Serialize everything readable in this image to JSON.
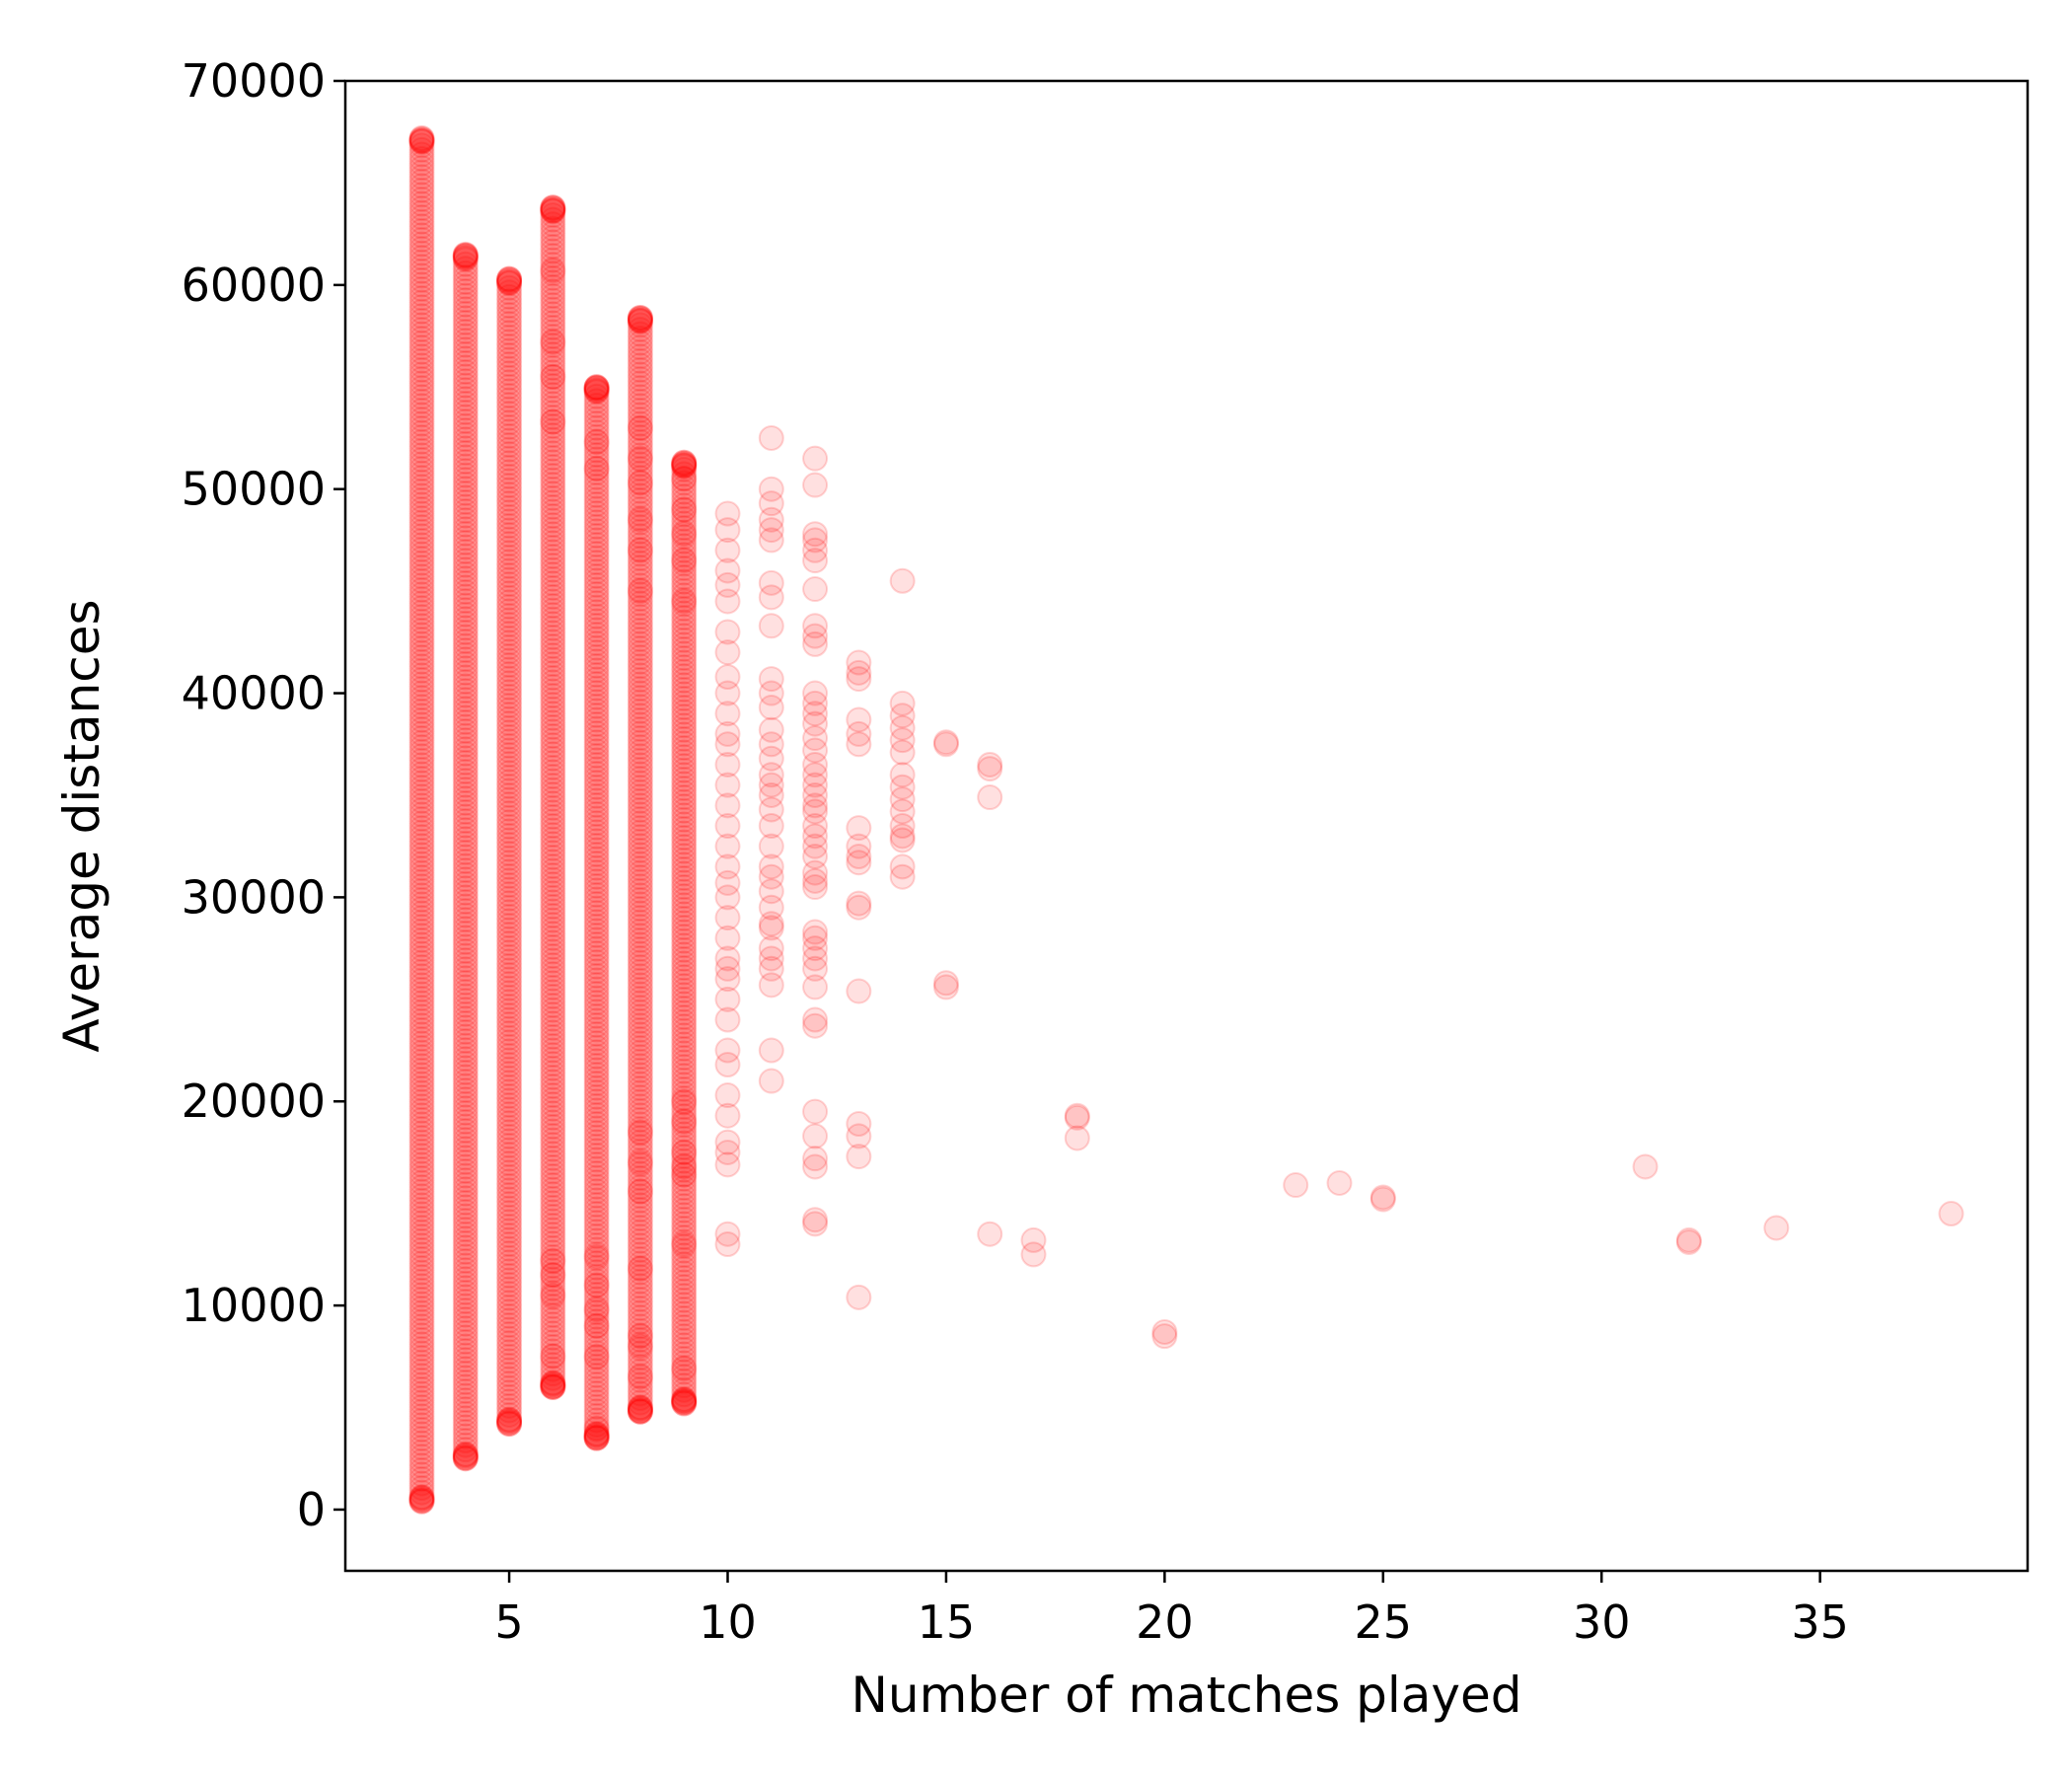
{
  "chart_data": {
    "type": "scatter",
    "title": "",
    "xlabel": "Number of matches played",
    "ylabel": "Average distances",
    "xlim": [
      1.25,
      39.75
    ],
    "ylim": [
      -3000,
      70000
    ],
    "xticks": [
      5,
      10,
      15,
      20,
      25,
      30,
      35
    ],
    "yticks": [
      0,
      10000,
      20000,
      30000,
      40000,
      50000,
      60000,
      70000
    ],
    "grid": false,
    "legend": "none",
    "marker": {
      "color": "#ff0000",
      "alpha": 0.12,
      "shape": "circle"
    },
    "series": [
      {
        "dense_bands": [
          {
            "x": 3,
            "y_range": [
              400,
              67200
            ]
          },
          {
            "x": 4,
            "y_range": [
              2500,
              61500
            ]
          },
          {
            "x": 5,
            "y_range": [
              4200,
              60300
            ]
          },
          {
            "x": 6,
            "y_range": [
              6000,
              63800
            ]
          },
          {
            "x": 7,
            "y_range": [
              3500,
              55000
            ]
          },
          {
            "x": 8,
            "y_range": [
              4800,
              58400
            ]
          },
          {
            "x": 9,
            "y_range": [
              5200,
              51300
            ]
          }
        ],
        "points": [
          [
            6,
            63800
          ],
          [
            6,
            60700
          ],
          [
            6,
            57200
          ],
          [
            6,
            55500
          ],
          [
            6,
            53300
          ],
          [
            6,
            12200
          ],
          [
            6,
            11500
          ],
          [
            6,
            10500
          ],
          [
            6,
            7500
          ],
          [
            6,
            6000
          ],
          [
            7,
            55000
          ],
          [
            7,
            52300
          ],
          [
            7,
            51000
          ],
          [
            7,
            12400
          ],
          [
            7,
            11000
          ],
          [
            7,
            9800
          ],
          [
            7,
            9000
          ],
          [
            7,
            7500
          ],
          [
            7,
            4000
          ],
          [
            7,
            3500
          ],
          [
            8,
            58400
          ],
          [
            8,
            53000
          ],
          [
            8,
            51500
          ],
          [
            8,
            50300
          ],
          [
            8,
            48500
          ],
          [
            8,
            47000
          ],
          [
            8,
            45000
          ],
          [
            8,
            18500
          ],
          [
            8,
            17000
          ],
          [
            8,
            15600
          ],
          [
            8,
            11800
          ],
          [
            8,
            8500
          ],
          [
            8,
            8000
          ],
          [
            8,
            6500
          ],
          [
            8,
            4800
          ],
          [
            9,
            51300
          ],
          [
            9,
            50500
          ],
          [
            9,
            49000
          ],
          [
            9,
            47800
          ],
          [
            9,
            46500
          ],
          [
            9,
            44500
          ],
          [
            9,
            20000
          ],
          [
            9,
            19000
          ],
          [
            9,
            17500
          ],
          [
            9,
            16800
          ],
          [
            9,
            16400
          ],
          [
            9,
            13000
          ],
          [
            9,
            6900
          ],
          [
            9,
            5300
          ],
          [
            10,
            48800
          ],
          [
            10,
            48000
          ],
          [
            10,
            47000
          ],
          [
            10,
            46000
          ],
          [
            10,
            45300
          ],
          [
            10,
            44500
          ],
          [
            10,
            43000
          ],
          [
            10,
            42000
          ],
          [
            10,
            40800
          ],
          [
            10,
            40000
          ],
          [
            10,
            39000
          ],
          [
            10,
            38000
          ],
          [
            10,
            37500
          ],
          [
            10,
            36500
          ],
          [
            10,
            35500
          ],
          [
            10,
            34500
          ],
          [
            10,
            33500
          ],
          [
            10,
            32500
          ],
          [
            10,
            31500
          ],
          [
            10,
            30700
          ],
          [
            10,
            30000
          ],
          [
            10,
            29000
          ],
          [
            10,
            28000
          ],
          [
            10,
            27000
          ],
          [
            10,
            26500
          ],
          [
            10,
            26000
          ],
          [
            10,
            25000
          ],
          [
            10,
            24000
          ],
          [
            10,
            22500
          ],
          [
            10,
            21800
          ],
          [
            10,
            20300
          ],
          [
            10,
            19300
          ],
          [
            10,
            18000
          ],
          [
            10,
            17500
          ],
          [
            10,
            16900
          ],
          [
            10,
            13500
          ],
          [
            10,
            13000
          ],
          [
            11,
            52500
          ],
          [
            11,
            50000
          ],
          [
            11,
            49300
          ],
          [
            11,
            48500
          ],
          [
            11,
            48000
          ],
          [
            11,
            47500
          ],
          [
            11,
            45400
          ],
          [
            11,
            44700
          ],
          [
            11,
            43300
          ],
          [
            11,
            40700
          ],
          [
            11,
            40000
          ],
          [
            11,
            39300
          ],
          [
            11,
            38200
          ],
          [
            11,
            37500
          ],
          [
            11,
            36800
          ],
          [
            11,
            36000
          ],
          [
            11,
            35500
          ],
          [
            11,
            35000
          ],
          [
            11,
            34300
          ],
          [
            11,
            33500
          ],
          [
            11,
            32500
          ],
          [
            11,
            31500
          ],
          [
            11,
            31000
          ],
          [
            11,
            30300
          ],
          [
            11,
            29500
          ],
          [
            11,
            28700
          ],
          [
            11,
            28500
          ],
          [
            11,
            27500
          ],
          [
            11,
            27000
          ],
          [
            11,
            26500
          ],
          [
            11,
            25700
          ],
          [
            11,
            22500
          ],
          [
            11,
            21000
          ],
          [
            12,
            51500
          ],
          [
            12,
            50200
          ],
          [
            12,
            47800
          ],
          [
            12,
            47500
          ],
          [
            12,
            47000
          ],
          [
            12,
            46500
          ],
          [
            12,
            45100
          ],
          [
            12,
            43300
          ],
          [
            12,
            42800
          ],
          [
            12,
            42400
          ],
          [
            12,
            40000
          ],
          [
            12,
            39500
          ],
          [
            12,
            39000
          ],
          [
            12,
            38500
          ],
          [
            12,
            37800
          ],
          [
            12,
            37200
          ],
          [
            12,
            36500
          ],
          [
            12,
            36000
          ],
          [
            12,
            35500
          ],
          [
            12,
            35000
          ],
          [
            12,
            34500
          ],
          [
            12,
            34200
          ],
          [
            12,
            33500
          ],
          [
            12,
            33000
          ],
          [
            12,
            32500
          ],
          [
            12,
            32000
          ],
          [
            12,
            31200
          ],
          [
            12,
            30800
          ],
          [
            12,
            30500
          ],
          [
            12,
            28300
          ],
          [
            12,
            28000
          ],
          [
            12,
            27500
          ],
          [
            12,
            27000
          ],
          [
            12,
            26500
          ],
          [
            12,
            25600
          ],
          [
            12,
            24000
          ],
          [
            12,
            23700
          ],
          [
            12,
            19500
          ],
          [
            12,
            18300
          ],
          [
            12,
            17200
          ],
          [
            12,
            16800
          ],
          [
            12,
            14200
          ],
          [
            12,
            14000
          ],
          [
            13,
            41500
          ],
          [
            13,
            41000
          ],
          [
            13,
            40700
          ],
          [
            13,
            38700
          ],
          [
            13,
            38000
          ],
          [
            13,
            37500
          ],
          [
            13,
            33400
          ],
          [
            13,
            32500
          ],
          [
            13,
            32000
          ],
          [
            13,
            31700
          ],
          [
            13,
            29700
          ],
          [
            13,
            29500
          ],
          [
            13,
            25400
          ],
          [
            13,
            18900
          ],
          [
            13,
            18300
          ],
          [
            13,
            17300
          ],
          [
            13,
            10400
          ],
          [
            14,
            45500
          ],
          [
            14,
            39500
          ],
          [
            14,
            38900
          ],
          [
            14,
            38300
          ],
          [
            14,
            37700
          ],
          [
            14,
            37100
          ],
          [
            14,
            36000
          ],
          [
            14,
            35400
          ],
          [
            14,
            34800
          ],
          [
            14,
            34200
          ],
          [
            14,
            33500
          ],
          [
            14,
            33000
          ],
          [
            14,
            32800
          ],
          [
            14,
            31500
          ],
          [
            14,
            31000
          ],
          [
            15,
            37600
          ],
          [
            15,
            37500
          ],
          [
            15,
            25800
          ],
          [
            15,
            25600
          ],
          [
            16,
            36500
          ],
          [
            16,
            36300
          ],
          [
            16,
            34900
          ],
          [
            16,
            13500
          ],
          [
            17,
            13200
          ],
          [
            17,
            12500
          ],
          [
            18,
            19300
          ],
          [
            18,
            19200
          ],
          [
            18,
            18200
          ],
          [
            20,
            8700
          ],
          [
            20,
            8500
          ],
          [
            23,
            15900
          ],
          [
            24,
            16000
          ],
          [
            25,
            15300
          ],
          [
            25,
            15200
          ],
          [
            31,
            16800
          ],
          [
            32,
            13200
          ],
          [
            32,
            13100
          ],
          [
            34,
            13800
          ],
          [
            38,
            14500
          ]
        ]
      }
    ]
  }
}
